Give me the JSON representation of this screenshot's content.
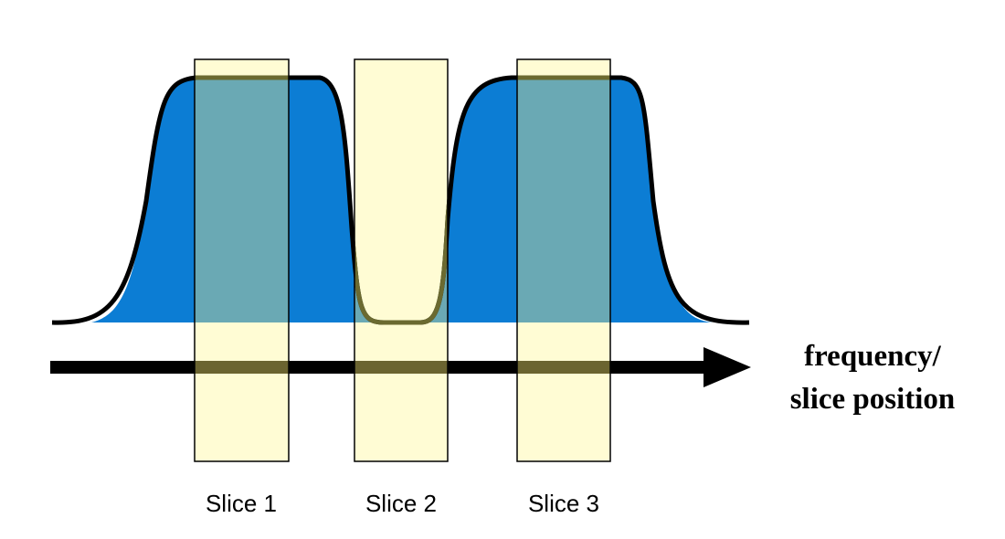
{
  "slices": [
    {
      "label": "Slice 1"
    },
    {
      "label": "Slice 2"
    },
    {
      "label": "Slice 3"
    }
  ],
  "axis_label": {
    "lines": [
      "frequency/",
      "slice position"
    ]
  }
}
